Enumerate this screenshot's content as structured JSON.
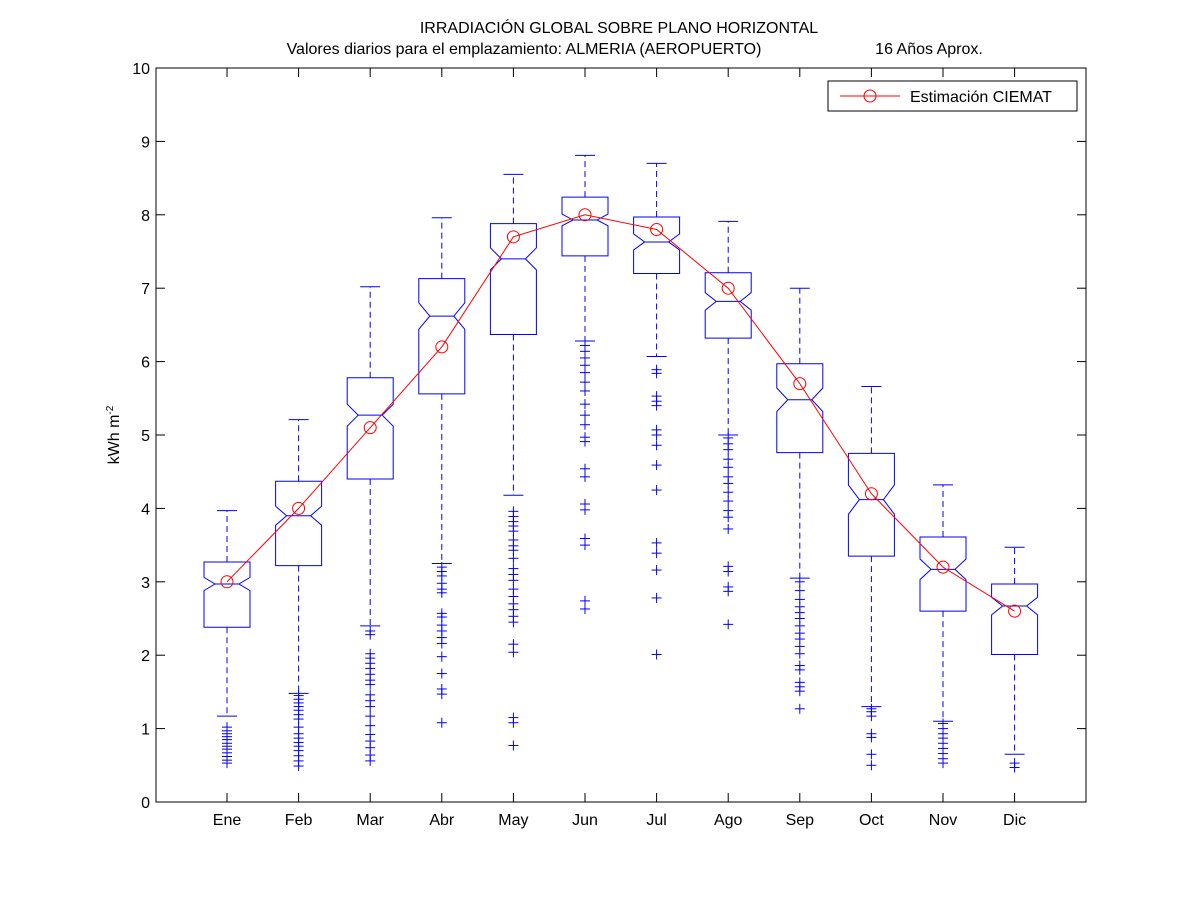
{
  "chart_data": {
    "type": "box",
    "title": "IRRADIACIÓN GLOBAL SOBRE PLANO HORIZONTAL",
    "subtitle": "Valores diarios para el emplazamiento:  ALMERIA (AEROPUERTO)",
    "subtitle_right": "16 Años Aprox.",
    "ylabel_main": "kWh m",
    "ylabel_sup": "-2",
    "ylim": [
      0,
      10
    ],
    "yticks": [
      0,
      1,
      2,
      3,
      4,
      5,
      6,
      7,
      8,
      9,
      10
    ],
    "ytick_labels": [
      "0",
      "1",
      "2",
      "3",
      "4",
      "5",
      "6",
      "7",
      "8",
      "9",
      "10"
    ],
    "categories": [
      "Ene",
      "Feb",
      "Mar",
      "Abr",
      "May",
      "Jun",
      "Jul",
      "Ago",
      "Sep",
      "Oct",
      "Nov",
      "Dic"
    ],
    "boxes": [
      {
        "q1": 2.38,
        "median": 2.97,
        "q3": 3.27,
        "whisker_low": 1.17,
        "whisker_high": 3.97,
        "notch_low": 2.88,
        "notch_high": 3.06,
        "outliers": [
          1.02,
          0.97,
          0.93,
          0.89,
          0.85,
          0.8,
          0.76,
          0.72,
          0.67,
          0.62,
          0.57,
          0.53
        ]
      },
      {
        "q1": 3.22,
        "median": 3.9,
        "q3": 4.37,
        "whisker_low": 1.48,
        "whisker_high": 5.21,
        "notch_low": 3.77,
        "notch_high": 4.03,
        "outliers": [
          1.45,
          1.4,
          1.35,
          1.3,
          1.25,
          1.19,
          1.13,
          1.02,
          0.93,
          0.87,
          0.81,
          0.76,
          0.7,
          0.63,
          0.56,
          0.49
        ]
      },
      {
        "q1": 4.4,
        "median": 5.27,
        "q3": 5.78,
        "whisker_low": 2.4,
        "whisker_high": 7.02,
        "notch_low": 5.12,
        "notch_high": 5.42,
        "outliers": [
          2.33,
          2.28,
          2.02,
          1.96,
          1.89,
          1.82,
          1.74,
          1.66,
          1.6,
          1.46,
          1.38,
          1.3,
          1.17,
          1.04,
          0.92,
          0.83,
          0.74,
          0.64,
          0.56
        ]
      },
      {
        "q1": 5.56,
        "median": 6.62,
        "q3": 7.13,
        "whisker_low": 3.25,
        "whisker_high": 7.96,
        "notch_low": 6.44,
        "notch_high": 6.8,
        "outliers": [
          3.2,
          3.14,
          3.08,
          2.98,
          2.9,
          2.85,
          2.57,
          2.52,
          2.41,
          2.33,
          2.24,
          2.16,
          1.98,
          1.75,
          1.54,
          1.47,
          1.08
        ]
      },
      {
        "q1": 6.37,
        "median": 7.4,
        "q3": 7.88,
        "whisker_low": 4.18,
        "whisker_high": 8.55,
        "notch_low": 7.25,
        "notch_high": 7.55,
        "outliers": [
          3.96,
          3.89,
          3.82,
          3.76,
          3.69,
          3.57,
          3.49,
          3.43,
          3.32,
          3.18,
          3.1,
          3.02,
          2.9,
          2.8,
          2.7,
          2.62,
          2.53,
          2.45,
          2.15,
          2.04,
          1.15,
          1.08,
          0.77
        ]
      },
      {
        "q1": 7.44,
        "median": 7.93,
        "q3": 8.24,
        "whisker_low": 6.28,
        "whisker_high": 8.81,
        "notch_low": 7.85,
        "notch_high": 8.01,
        "outliers": [
          6.22,
          6.14,
          6.05,
          5.95,
          5.85,
          5.72,
          5.6,
          5.42,
          5.27,
          5.14,
          4.97,
          4.91,
          4.54,
          4.43,
          4.06,
          3.98,
          3.59,
          3.5,
          2.74,
          2.63
        ]
      },
      {
        "q1": 7.2,
        "median": 7.63,
        "q3": 7.97,
        "whisker_low": 6.07,
        "whisker_high": 8.7,
        "notch_low": 7.52,
        "notch_high": 7.74,
        "outliers": [
          5.89,
          5.84,
          5.53,
          5.46,
          5.4,
          5.07,
          5.0,
          4.86,
          4.59,
          4.25,
          3.53,
          3.39,
          3.16,
          2.78,
          2.01
        ]
      },
      {
        "q1": 6.32,
        "median": 6.82,
        "q3": 7.21,
        "whisker_low": 5.0,
        "whisker_high": 7.91,
        "notch_low": 6.7,
        "notch_high": 6.94,
        "outliers": [
          4.96,
          4.88,
          4.8,
          4.67,
          4.56,
          4.43,
          4.34,
          4.22,
          4.1,
          3.97,
          3.88,
          3.72,
          3.21,
          3.14,
          2.93,
          2.87,
          2.42
        ]
      },
      {
        "q1": 4.76,
        "median": 5.48,
        "q3": 5.97,
        "whisker_low": 3.05,
        "whisker_high": 7.0,
        "notch_low": 5.32,
        "notch_high": 5.64,
        "outliers": [
          3.0,
          2.88,
          2.76,
          2.66,
          2.58,
          2.5,
          2.4,
          2.3,
          2.22,
          2.12,
          2.02,
          1.86,
          1.8,
          1.63,
          1.57,
          1.51,
          1.27
        ]
      },
      {
        "q1": 3.35,
        "median": 4.12,
        "q3": 4.75,
        "whisker_low": 1.3,
        "whisker_high": 5.66,
        "notch_low": 3.92,
        "notch_high": 4.32,
        "outliers": [
          1.27,
          1.23,
          1.17,
          0.93,
          0.88,
          0.65,
          0.5
        ]
      },
      {
        "q1": 2.6,
        "median": 3.17,
        "q3": 3.61,
        "whisker_low": 1.1,
        "whisker_high": 4.32,
        "notch_low": 3.03,
        "notch_high": 3.31,
        "outliers": [
          1.07,
          1.0,
          0.93,
          0.87,
          0.8,
          0.73,
          0.66,
          0.59,
          0.53
        ]
      },
      {
        "q1": 2.01,
        "median": 2.67,
        "q3": 2.97,
        "whisker_low": 0.65,
        "whisker_high": 3.47,
        "notch_low": 2.55,
        "notch_high": 2.79,
        "outliers": [
          0.53,
          0.47
        ]
      }
    ],
    "series": [
      {
        "name": "Estimación CIEMAT",
        "color": "#ff0000",
        "values": [
          3.0,
          4.0,
          5.1,
          6.2,
          7.7,
          8.0,
          7.8,
          7.0,
          5.7,
          4.2,
          3.2,
          2.6
        ]
      }
    ],
    "box_color": "#0000ff",
    "legend_position": "top-right"
  }
}
